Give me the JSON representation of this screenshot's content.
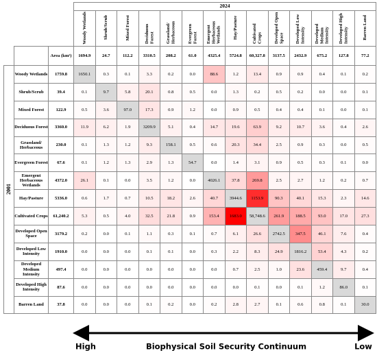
{
  "table": {
    "col_group_label": "2024",
    "row_group_label": "2001",
    "area_label": "Area (km²)",
    "columns": [
      "Woody Wetlands",
      "Shrub/Scrub",
      "Mixed Forest",
      "Deciduous Forest",
      "Grassland/ Herbaceous",
      "Evergreen Forest",
      "Emergent Herbaceous Wetlands",
      "Hay/Pasture",
      "Cultivated Crops",
      "Developed Open Space",
      "Developed Low Intensity",
      "Developed Medium Intensity",
      "Developed High Intensity",
      "Barren Land"
    ],
    "column_areas": [
      "1694.9",
      "24.7",
      "112.2",
      "3310.5",
      "208.2",
      "61.0",
      "4325.4",
      "5724.8",
      "60,327.8",
      "3137.5",
      "2432.9",
      "675.2",
      "127.8",
      "77.2"
    ],
    "rows": [
      {
        "label": "Woody Wetlands",
        "area": "1759.8",
        "values": [
          "1650.1",
          "0.3",
          "0.1",
          "3.3",
          "0.2",
          "0.0",
          "88.6",
          "1.2",
          "13.4",
          "0.9",
          "0.9",
          "0.4",
          "0.1",
          "0.2"
        ]
      },
      {
        "label": "Shrub/Scrub",
        "area": "39.4",
        "values": [
          "0.1",
          "9.7",
          "5.8",
          "20.1",
          "0.8",
          "0.5",
          "0.0",
          "1.3",
          "0.2",
          "0.5",
          "0.2",
          "0.0",
          "0.0",
          "0.1"
        ]
      },
      {
        "label": "Mixed Forest",
        "area": "122.9",
        "values": [
          "0.5",
          "3.6",
          "97.0",
          "17.3",
          "0.9",
          "1.2",
          "0.0",
          "0.9",
          "0.5",
          "0.4",
          "0.4",
          "0.1",
          "0.0",
          "0.1"
        ]
      },
      {
        "label": "Deciduous Forest",
        "area": "3360.0",
        "values": [
          "11.9",
          "6.2",
          "1.9",
          "3209.9",
          "5.1",
          "0.4",
          "14.7",
          "19.6",
          "63.9",
          "9.2",
          "10.7",
          "3.6",
          "0.4",
          "2.6"
        ]
      },
      {
        "label": "Grassland/ Herbaceous",
        "area": "230.0",
        "values": [
          "0.1",
          "1.3",
          "1.2",
          "9.3",
          "158.1",
          "0.5",
          "0.6",
          "20.3",
          "34.4",
          "2.5",
          "0.9",
          "0.3",
          "0.0",
          "0.5"
        ]
      },
      {
        "label": "Evergreen Forest",
        "area": "67.6",
        "values": [
          "0.1",
          "1.2",
          "1.3",
          "2.9",
          "1.3",
          "54.7",
          "0.0",
          "1.4",
          "3.1",
          "0.9",
          "0.5",
          "0.3",
          "0.1",
          "0.0"
        ]
      },
      {
        "label": "Emergent Herbaceous Wetlands",
        "area": "4372.0",
        "values": [
          "26.1",
          "0.1",
          "0.0",
          "3.5",
          "1.2",
          "0.0",
          "4026.1",
          "37.8",
          "269.8",
          "2.5",
          "2.7",
          "1.2",
          "0.2",
          "0.7"
        ]
      },
      {
        "label": "Hay/Pasture",
        "area": "5336.0",
        "values": [
          "0.6",
          "1.7",
          "0.7",
          "10.5",
          "18.2",
          "2.6",
          "40.7",
          "3944.6",
          "1153.9",
          "90.3",
          "40.1",
          "15.3",
          "2.3",
          "14.6"
        ]
      },
      {
        "label": "Cultivated Crops",
        "area": "61,240.2",
        "values": [
          "5.3",
          "0.5",
          "4.0",
          "32.5",
          "21.8",
          "0.9",
          "153.4",
          "1683.0",
          "58,748.6",
          "261.9",
          "188.5",
          "93.0",
          "17.0",
          "27.3"
        ]
      },
      {
        "label": "Developed Open Space",
        "area": "3179.2",
        "values": [
          "0.2",
          "0.0",
          "0.1",
          "1.1",
          "0.3",
          "0.1",
          "0.7",
          "6.1",
          "26.6",
          "2742.5",
          "347.5",
          "46.1",
          "7.6",
          "0.4"
        ]
      },
      {
        "label": "Developed Low Intensity",
        "area": "1910.0",
        "values": [
          "0.0",
          "0.0",
          "0.0",
          "0.1",
          "0.1",
          "0.0",
          "0.3",
          "2.2",
          "8.3",
          "24.9",
          "1816.2",
          "53.4",
          "4.3",
          "0.2"
        ]
      },
      {
        "label": "Developed Medium Intensity",
        "area": "497.4",
        "values": [
          "0.0",
          "0.0",
          "0.0",
          "0.0",
          "0.0",
          "0.0",
          "0.0",
          "0.7",
          "2.5",
          "1.0",
          "23.6",
          "459.4",
          "9.7",
          "0.4"
        ]
      },
      {
        "label": "Developed High Intensity",
        "area": "87.6",
        "values": [
          "0.0",
          "0.0",
          "0.0",
          "0.0",
          "0.0",
          "0.0",
          "0.0",
          "0.0",
          "0.1",
          "0.0",
          "0.1",
          "1.2",
          "86.0",
          "0.1"
        ]
      },
      {
        "label": "Barren Land",
        "area": "37.8",
        "values": [
          "0.0",
          "0.0",
          "0.0",
          "0.1",
          "0.2",
          "0.0",
          "0.2",
          "2.8",
          "2.7",
          "0.1",
          "0.6",
          "0.8",
          "0.1",
          "30.0"
        ]
      }
    ]
  },
  "continuum": {
    "high": "High",
    "title": "Biophysical Soil Security Continuum",
    "low": "Low"
  }
}
